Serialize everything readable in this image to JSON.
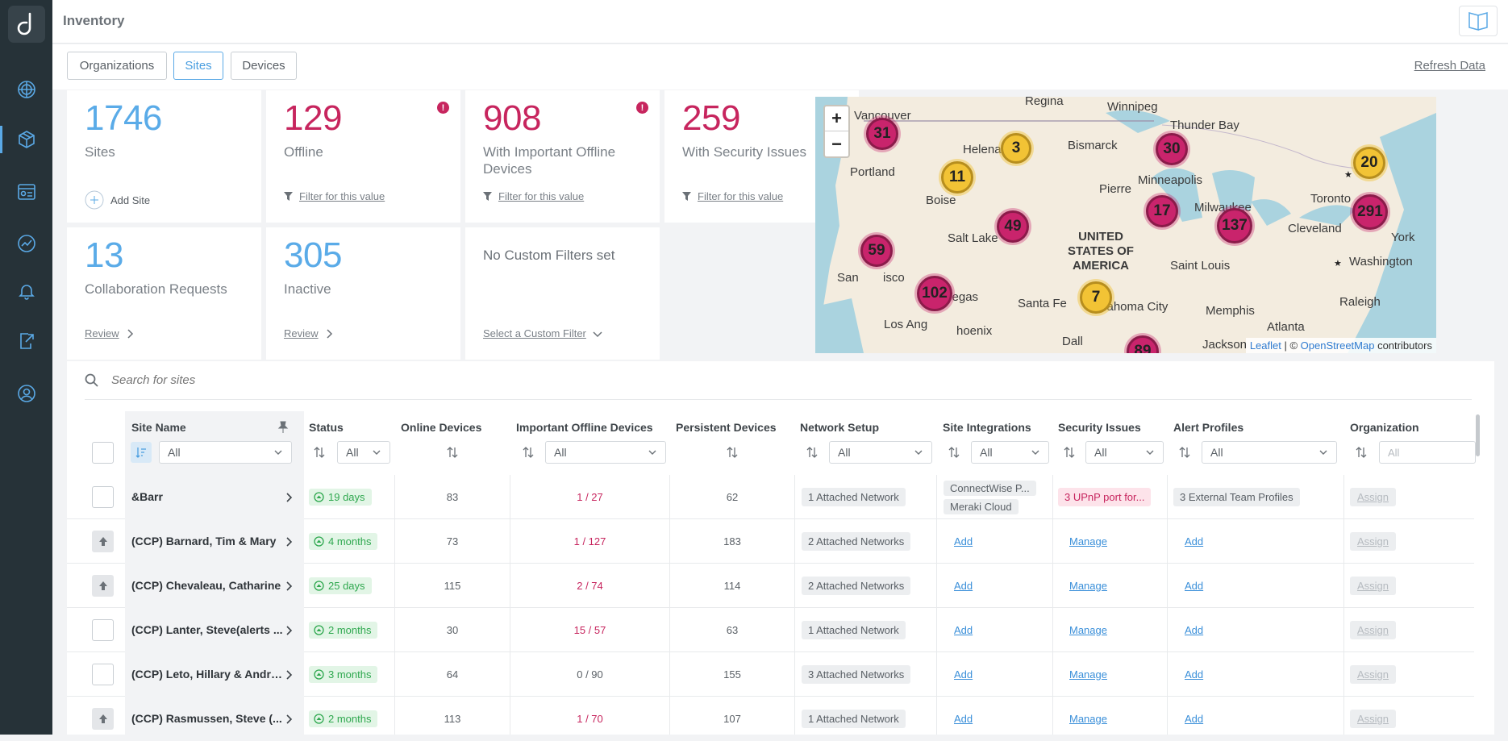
{
  "app": {
    "title": "Inventory"
  },
  "tabs": [
    {
      "label": "Organizations"
    },
    {
      "label": "Sites"
    },
    {
      "label": "Devices"
    }
  ],
  "refresh_label": "Refresh Data",
  "cards": {
    "sites": {
      "value": "1746",
      "label": "Sites",
      "action": "Add Site"
    },
    "offline": {
      "value": "129",
      "label": "Offline",
      "action": "Filter for this value",
      "alert": "!"
    },
    "important_offline": {
      "value": "908",
      "label": "With Important Offline Devices",
      "action": "Filter for this value",
      "alert": "!"
    },
    "security": {
      "value": "259",
      "label": "With Security Issues",
      "action": "Filter for this value",
      "alert": "!"
    },
    "collab": {
      "value": "13",
      "label": "Collaboration Requests",
      "action": "Review"
    },
    "inactive": {
      "value": "305",
      "label": "Inactive",
      "action": "Review"
    },
    "custom": {
      "label": "No Custom Filters set",
      "action": "Select a Custom Filter"
    }
  },
  "map": {
    "zoom_in": "+",
    "zoom_out": "−",
    "cities": [
      "Regina",
      "Winnipeg",
      "Vancouver",
      "Thunder Bay",
      "Helena",
      "Bismarck",
      "Portland",
      "Minneapolis",
      "Boise",
      "Pierre",
      "Toronto",
      "Milwaukee",
      "Salt Lake",
      "Cleveland",
      "York",
      "Washington",
      "San",
      "isco",
      "Saint Louis",
      "Las Vegas",
      "Santa Fe",
      "Oklahoma City",
      "Memphis",
      "Raleigh",
      "Los Ang",
      "hoenix",
      "Atlanta",
      "Dall",
      "Jackson"
    ],
    "country": "UNITED STATES OF AMERICA",
    "clusters": [
      "31",
      "3",
      "30",
      "20",
      "11",
      "17",
      "291",
      "49",
      "137",
      "59",
      "102",
      "7",
      "89"
    ],
    "attribution": {
      "leaflet": "Leaflet",
      "sep": " | © ",
      "osm": "OpenStreetMap",
      "suffix": " contributors"
    }
  },
  "table": {
    "search_placeholder": "Search for sites",
    "columns": {
      "site_name": "Site Name",
      "status": "Status",
      "online": "Online Devices",
      "important_offline": "Important Offline Devices",
      "persistent": "Persistent Devices",
      "network": "Network Setup",
      "integrations": "Site Integrations",
      "security": "Security Issues",
      "alerts": "Alert Profiles",
      "organization": "Organization"
    },
    "filters": {
      "site_name": "All",
      "status": "All",
      "important_offline": "All",
      "network": "All",
      "integrations": "All",
      "security": "All",
      "alerts": "All",
      "organization": "All"
    },
    "rows": [
      {
        "name": "&Barr",
        "status": "19 days",
        "online": "83",
        "offline": "1 / 27",
        "persistent": "62",
        "network": "1 Attached Network",
        "integration1": "ConnectWise P...",
        "integration2": "Meraki Cloud",
        "security": "3 UPnP port for...",
        "alerts": "3 External Team Profiles",
        "org": "Assign"
      },
      {
        "name": "(CCP) Barnard, Tim & Mary",
        "status": "4 months",
        "online": "73",
        "offline": "1 / 127",
        "persistent": "183",
        "network": "2 Attached Networks",
        "integration": "Add",
        "security": "Manage",
        "alerts": "Add",
        "org": "Assign"
      },
      {
        "name": "(CCP) Chevaleau, Catharine",
        "status": "25 days",
        "online": "115",
        "offline": "2 / 74",
        "persistent": "114",
        "network": "2 Attached Networks",
        "integration": "Add",
        "security": "Manage",
        "alerts": "Add",
        "org": "Assign"
      },
      {
        "name": "(CCP) Lanter, Steve(alerts ...",
        "status": "2 months",
        "online": "30",
        "offline": "15 / 57",
        "persistent": "63",
        "network": "1 Attached Network",
        "integration": "Add",
        "security": "Manage",
        "alerts": "Add",
        "org": "Assign"
      },
      {
        "name": "(CCP) Leto, Hillary & Andrew",
        "status": "3 months",
        "online": "64",
        "offline": "0 / 90",
        "persistent": "155",
        "network": "3 Attached Networks",
        "integration": "Add",
        "security": "Manage",
        "alerts": "Add",
        "org": "Assign"
      },
      {
        "name": "(CCP) Rasmussen, Steve (...",
        "status": "2 months",
        "online": "113",
        "offline": "1 / 70",
        "persistent": "107",
        "network": "1 Attached Network",
        "integration": "Add",
        "security": "Manage",
        "alerts": "Add",
        "org": "Assign"
      }
    ]
  },
  "colors": {
    "accent": "#5aabe8",
    "alert": "#c7255e",
    "sidebar": "#263238",
    "ok": "#2fa84f"
  }
}
